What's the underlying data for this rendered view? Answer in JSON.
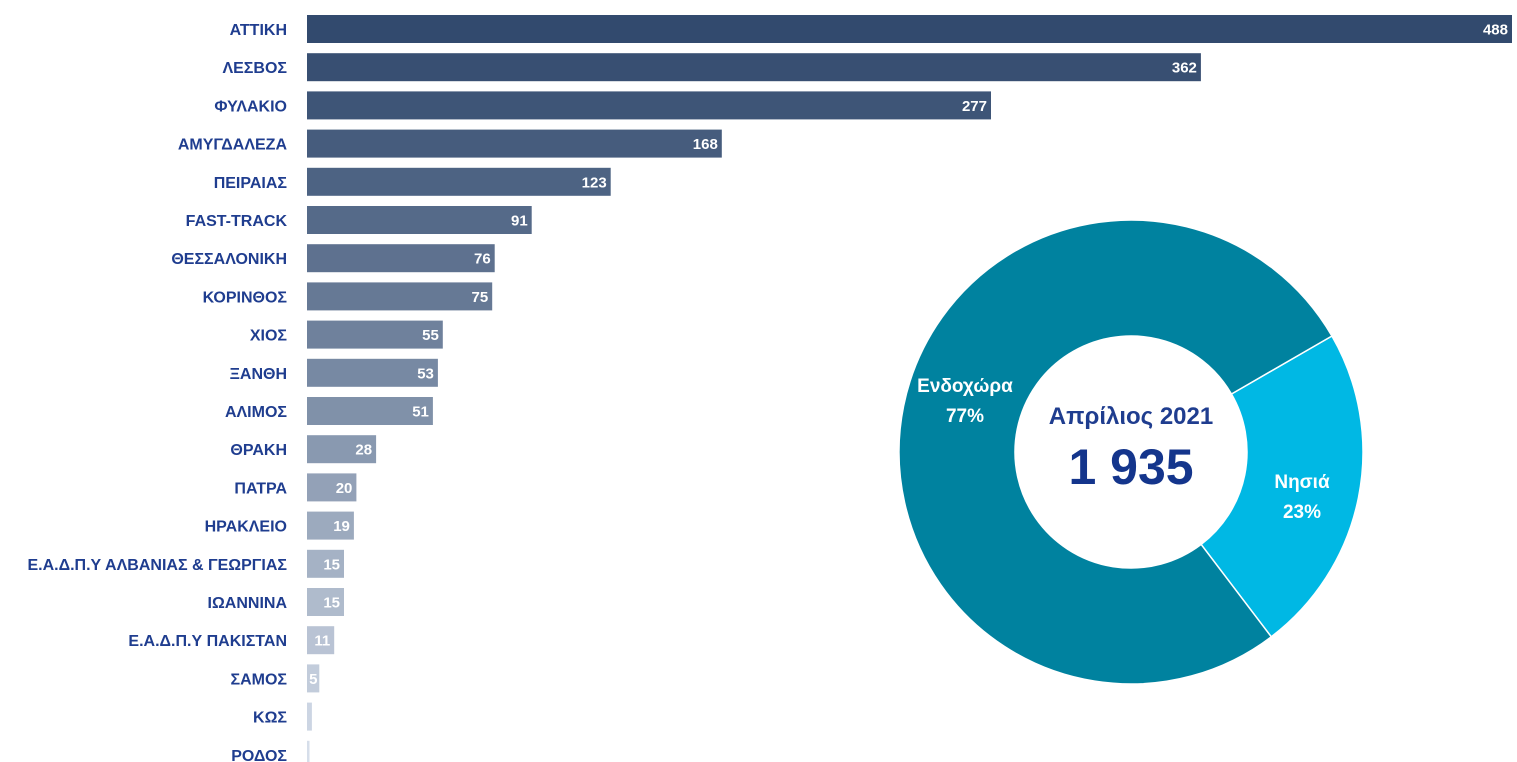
{
  "chart_data": [
    {
      "type": "bar",
      "orientation": "horizontal",
      "categories": [
        "ΑΤΤΙΚΗ",
        "ΛΕΣΒΟΣ",
        "ΦΥΛΑΚΙΟ",
        "ΑΜΥΓΔΑΛΕΖΑ",
        "ΠΕΙΡΑΙΑΣ",
        "FAST-TRACK",
        "ΘΕΣΣΑΛΟΝΙΚΗ",
        "ΚΟΡΙΝΘΟΣ",
        "ΧΙΟΣ",
        "ΞΑΝΘΗ",
        "ΑΛΙΜΟΣ",
        "ΘΡΑΚΗ",
        "ΠΑΤΡΑ",
        "ΗΡΑΚΛΕΙΟ",
        "Ε.Α.Δ.Π.Υ ΑΛΒΑΝΙΑΣ & ΓΕΩΡΓΙΑΣ",
        "ΙΩΑΝΝΙΝΑ",
        "Ε.Α.Δ.Π.Υ ΠΑΚΙΣΤΑΝ",
        "ΣΑΜΟΣ",
        "ΚΩΣ",
        "ΡΟΔΟΣ"
      ],
      "values": [
        488,
        362,
        277,
        168,
        123,
        91,
        76,
        75,
        55,
        53,
        51,
        28,
        20,
        19,
        15,
        15,
        11,
        5,
        2,
        1
      ],
      "value_labels": [
        "488",
        "362",
        "277",
        "168",
        "123",
        "91",
        "76",
        "75",
        "55",
        "53",
        "51",
        "28",
        "20",
        "19",
        "15",
        "15",
        "11",
        "5",
        "",
        ""
      ],
      "xlim": [
        0,
        488
      ],
      "grid": false,
      "colors": {
        "bar_dark": "#324a6e",
        "bar_light": "#d6deea",
        "label_text": "#1f3d8f",
        "value_text": "#ffffff"
      }
    },
    {
      "type": "pie",
      "style": "donut",
      "slices": [
        {
          "label": "Ενδοχώρα",
          "value": 77,
          "percent_label": "77%",
          "color": "#00829f"
        },
        {
          "label": "Νησιά",
          "value": 23,
          "percent_label": "23%",
          "color": "#00b8e4"
        }
      ],
      "center_title": "Απρίλιος 2021",
      "center_value": "1 935",
      "colors": {
        "center_title": "#1f3d8f",
        "center_value": "#14358c",
        "slice_text": "#ffffff"
      }
    }
  ]
}
